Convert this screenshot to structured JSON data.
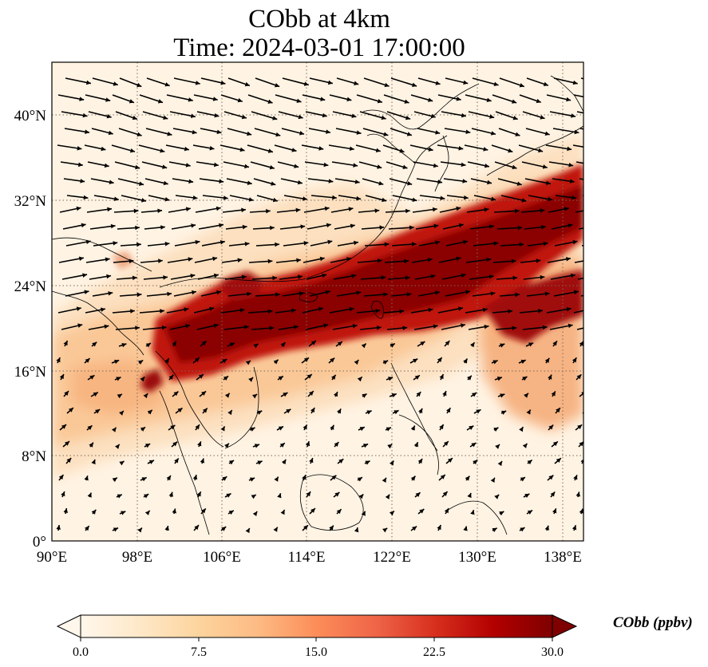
{
  "figure": {
    "title_line1": "CObb at 4km",
    "title_line2": "Time: 2024-03-01 17:00:00"
  },
  "map": {
    "variable": "CObb",
    "level": "4km",
    "lon_range": [
      90,
      140
    ],
    "lat_range": [
      0,
      45
    ],
    "x_ticks": [
      "90°E",
      "98°E",
      "106°E",
      "114°E",
      "122°E",
      "130°E",
      "138°E"
    ],
    "y_ticks": [
      "0°",
      "8°N",
      "16°N",
      "24°N",
      "32°N",
      "40°N"
    ],
    "gridlines": "dotted",
    "overlay": "wind vectors (black arrows)"
  },
  "colorbar": {
    "label": "CObb (ppbv)",
    "ticks": [
      "0.0",
      "7.5",
      "15.0",
      "22.5",
      "30.0"
    ],
    "min": 0,
    "max": 30,
    "extend": "both",
    "colormap": [
      "#fff7ec",
      "#fee8c8",
      "#fdd49e",
      "#fdbb84",
      "#fc8d59",
      "#ef6548",
      "#d7301f",
      "#b30000",
      "#7f0000"
    ]
  },
  "colors": {
    "background": "#fff2e0",
    "plume": "#7f0000",
    "grid": "#7a6a5a",
    "arrows": "#000000"
  }
}
